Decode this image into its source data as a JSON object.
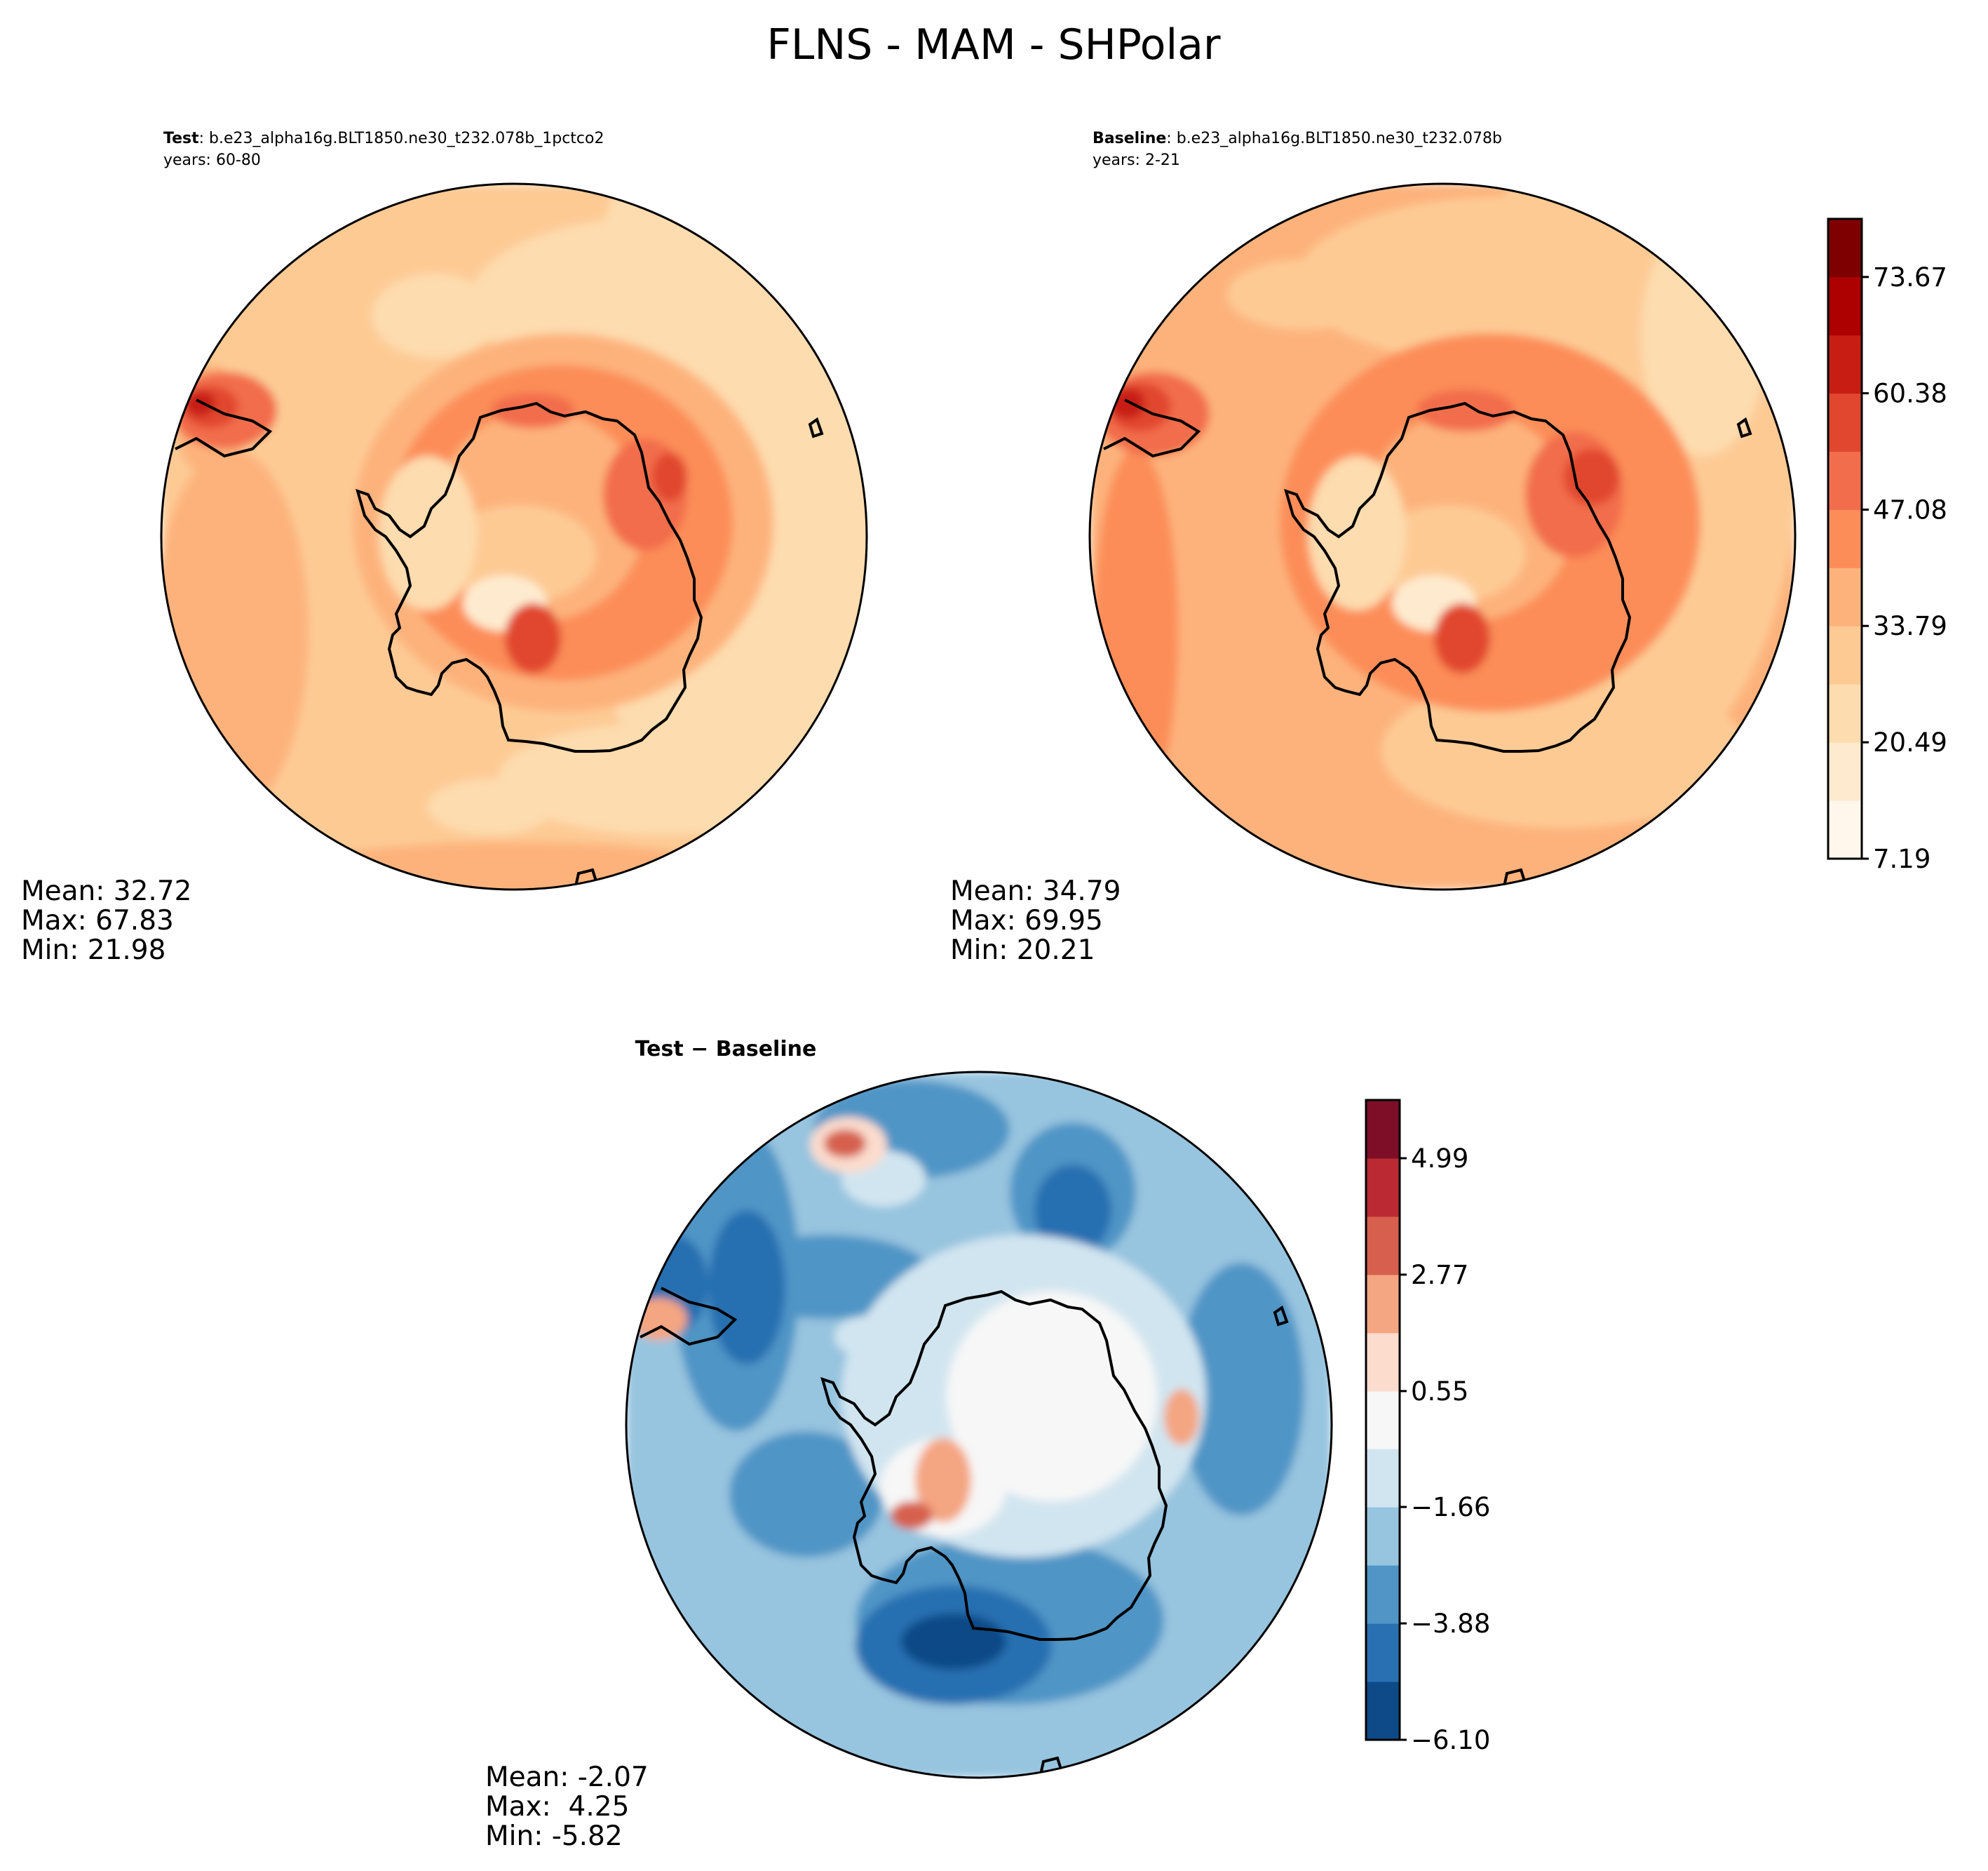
{
  "figure": {
    "title": "FLNS - MAM - SHPolar"
  },
  "chart_data": [
    {
      "type": "heatmap",
      "projection": "south-polar stereographic",
      "title_bold": "Test",
      "title_rest": ": b.e23_alpha16g.BLT1850.ne30_t232.078b_1pctco2",
      "subtitle": "years: 60-80",
      "stats": {
        "mean": "Mean: 32.72",
        "max": "Max: 67.83",
        "min": "Min: 21.98"
      },
      "colormap": "OrRd",
      "value_range": [
        7.19,
        80.31
      ]
    },
    {
      "type": "heatmap",
      "projection": "south-polar stereographic",
      "title_bold": "Baseline",
      "title_rest": ": b.e23_alpha16g.BLT1850.ne30_t232.078b",
      "subtitle": "years: 2-21",
      "stats": {
        "mean": "Mean: 34.79",
        "max": "Max: 69.95",
        "min": "Min: 20.21"
      },
      "colormap": "OrRd",
      "value_range": [
        7.19,
        80.31
      ],
      "colorbar": {
        "ticks": [
          7.19,
          20.49,
          33.79,
          47.08,
          60.38,
          73.67
        ],
        "tick_labels": [
          "7.19",
          "20.49",
          "33.79",
          "47.08",
          "60.38",
          "73.67"
        ],
        "levels": [
          7.19,
          13.84,
          20.49,
          27.14,
          33.79,
          40.44,
          47.08,
          53.73,
          60.38,
          67.03,
          73.67,
          80.31
        ],
        "colors": [
          "#fff7ec",
          "#feebcf",
          "#fddcaf",
          "#fdca94",
          "#fdb27b",
          "#fc8d59",
          "#f26d4b",
          "#e1462f",
          "#c81d13",
          "#ad0000",
          "#7f0000"
        ]
      }
    },
    {
      "type": "heatmap",
      "projection": "south-polar stereographic",
      "title": "Test − Baseline",
      "stats": {
        "mean": "Mean: -2.07",
        "max": "Max:  4.25",
        "min": "Min: -5.82"
      },
      "colormap": "RdBu_r",
      "value_range": [
        -6.1,
        6.1
      ],
      "colorbar": {
        "ticks": [
          -6.1,
          -3.88,
          -1.66,
          0.55,
          2.77,
          4.99
        ],
        "tick_labels": [
          "−6.10",
          "−3.88",
          "−1.66",
          "0.55",
          "2.77",
          "4.99"
        ],
        "levels": [
          -6.1,
          -4.99,
          -3.88,
          -2.77,
          -1.66,
          -0.55,
          0.55,
          1.66,
          2.77,
          3.88,
          4.99,
          6.1
        ],
        "colors": [
          "#0d4a87",
          "#2870b1",
          "#5095c6",
          "#97c4df",
          "#d1e5f0",
          "#f7f7f7",
          "#fbdccd",
          "#f4a582",
          "#d6604d",
          "#bb2a33",
          "#7e0e27"
        ]
      }
    }
  ]
}
